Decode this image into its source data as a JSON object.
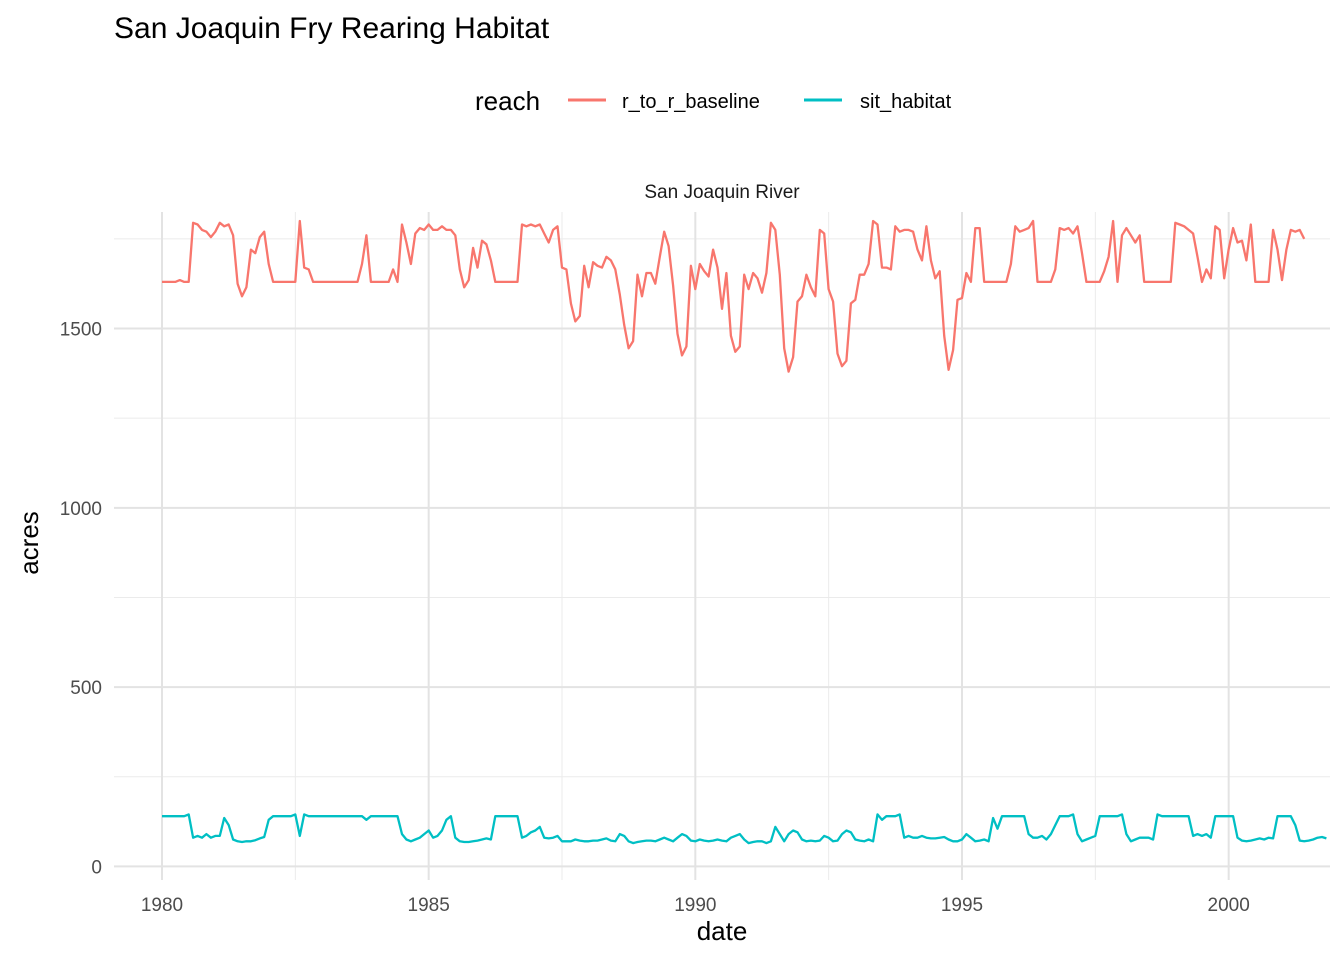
{
  "chart_data": {
    "type": "line",
    "title": "San Joaquin Fry Rearing Habitat",
    "panel": "San Joaquin River",
    "xlabel": "date",
    "ylabel": "acres",
    "legend_title": "reach",
    "legend_position": "top",
    "grid": true,
    "xlim": [
      1979.1,
      2001.9
    ],
    "ylim": [
      -38,
      1825
    ],
    "x_ticks": [
      1980,
      1985,
      1990,
      1995,
      2000
    ],
    "y_ticks": [
      0,
      500,
      1000,
      1500
    ],
    "colors": {
      "r_to_r_baseline": "#F8766D",
      "sit_habitat": "#00BFC4"
    },
    "series": [
      {
        "name": "r_to_r_baseline",
        "color": "#F8766D",
        "x_start": 1980.0,
        "x_step": 0.08333,
        "values": [
          1630,
          1630,
          1630,
          1630,
          1635,
          1630,
          1630,
          1795,
          1790,
          1775,
          1770,
          1755,
          1770,
          1795,
          1785,
          1790,
          1760,
          1625,
          1590,
          1615,
          1720,
          1710,
          1755,
          1770,
          1680,
          1630,
          1630,
          1630,
          1630,
          1630,
          1630,
          1800,
          1670,
          1665,
          1630,
          1630,
          1630,
          1630,
          1630,
          1630,
          1630,
          1630,
          1630,
          1630,
          1630,
          1680,
          1760,
          1630,
          1630,
          1630,
          1630,
          1630,
          1665,
          1630,
          1790,
          1740,
          1680,
          1765,
          1780,
          1775,
          1790,
          1775,
          1775,
          1785,
          1775,
          1775,
          1760,
          1665,
          1615,
          1635,
          1725,
          1670,
          1745,
          1735,
          1690,
          1630,
          1630,
          1630,
          1630,
          1630,
          1630,
          1790,
          1785,
          1790,
          1785,
          1790,
          1765,
          1740,
          1775,
          1785,
          1670,
          1665,
          1570,
          1520,
          1535,
          1675,
          1615,
          1685,
          1675,
          1670,
          1700,
          1690,
          1665,
          1595,
          1510,
          1445,
          1465,
          1650,
          1590,
          1655,
          1655,
          1625,
          1700,
          1770,
          1730,
          1620,
          1485,
          1425,
          1450,
          1675,
          1610,
          1680,
          1660,
          1645,
          1720,
          1670,
          1555,
          1655,
          1480,
          1435,
          1450,
          1650,
          1610,
          1655,
          1640,
          1600,
          1655,
          1795,
          1775,
          1650,
          1445,
          1380,
          1420,
          1575,
          1590,
          1650,
          1615,
          1590,
          1775,
          1765,
          1610,
          1575,
          1430,
          1395,
          1410,
          1570,
          1580,
          1650,
          1650,
          1680,
          1800,
          1790,
          1670,
          1670,
          1665,
          1785,
          1770,
          1775,
          1775,
          1770,
          1720,
          1690,
          1785,
          1690,
          1640,
          1660,
          1480,
          1385,
          1440,
          1580,
          1585,
          1655,
          1630,
          1780,
          1780,
          1630,
          1630,
          1630,
          1630,
          1630,
          1630,
          1680,
          1785,
          1770,
          1775,
          1780,
          1800,
          1630,
          1630,
          1630,
          1630,
          1665,
          1780,
          1775,
          1780,
          1765,
          1785,
          1710,
          1630,
          1630,
          1630,
          1630,
          1660,
          1700,
          1800,
          1630,
          1760,
          1780,
          1760,
          1740,
          1760,
          1630,
          1630,
          1630,
          1630,
          1630,
          1630,
          1630,
          1795,
          1790,
          1785,
          1775,
          1765,
          1700,
          1630,
          1665,
          1640,
          1785,
          1775,
          1640,
          1720,
          1780,
          1740,
          1745,
          1690,
          1790,
          1630,
          1630,
          1630,
          1630,
          1775,
          1720,
          1635,
          1720,
          1775,
          1770,
          1775,
          1750
        ]
      },
      {
        "name": "sit_habitat",
        "color": "#00BFC4",
        "x_start": 1980.0,
        "x_step": 0.08333,
        "values": [
          140,
          140,
          140,
          140,
          140,
          140,
          145,
          80,
          85,
          80,
          90,
          80,
          85,
          85,
          135,
          115,
          75,
          70,
          68,
          70,
          70,
          73,
          78,
          82,
          130,
          140,
          140,
          140,
          140,
          140,
          145,
          85,
          145,
          140,
          140,
          140,
          140,
          140,
          140,
          140,
          140,
          140,
          140,
          140,
          140,
          140,
          130,
          140,
          140,
          140,
          140,
          140,
          140,
          140,
          90,
          75,
          70,
          75,
          80,
          90,
          100,
          80,
          85,
          100,
          130,
          140,
          80,
          70,
          68,
          68,
          70,
          72,
          75,
          78,
          75,
          140,
          140,
          140,
          140,
          140,
          140,
          80,
          85,
          95,
          100,
          110,
          80,
          78,
          80,
          85,
          70,
          70,
          70,
          75,
          72,
          70,
          70,
          72,
          72,
          75,
          78,
          72,
          70,
          90,
          85,
          70,
          65,
          68,
          70,
          72,
          72,
          70,
          75,
          80,
          75,
          70,
          80,
          90,
          85,
          72,
          70,
          75,
          72,
          70,
          72,
          75,
          72,
          70,
          80,
          85,
          90,
          75,
          65,
          68,
          70,
          70,
          65,
          70,
          110,
          90,
          70,
          90,
          100,
          95,
          75,
          70,
          72,
          70,
          72,
          85,
          80,
          70,
          72,
          90,
          100,
          95,
          75,
          72,
          70,
          75,
          70,
          145,
          130,
          140,
          140,
          140,
          145,
          80,
          85,
          80,
          80,
          85,
          80,
          78,
          78,
          80,
          82,
          75,
          70,
          70,
          75,
          90,
          80,
          70,
          72,
          75,
          70,
          135,
          105,
          140,
          140,
          140,
          140,
          140,
          140,
          90,
          80,
          80,
          85,
          75,
          90,
          115,
          140,
          140,
          140,
          145,
          90,
          70,
          75,
          80,
          85,
          140,
          140,
          140,
          140,
          140,
          145,
          90,
          70,
          75,
          80,
          80,
          80,
          75,
          145,
          140,
          140,
          140,
          140,
          140,
          140,
          140,
          85,
          90,
          85,
          90,
          80,
          140,
          140,
          140,
          140,
          140,
          80,
          72,
          70,
          72,
          75,
          78,
          75,
          80,
          78,
          140,
          140,
          140,
          140,
          115,
          72,
          70,
          72,
          75,
          80,
          82,
          78
        ]
      }
    ]
  }
}
